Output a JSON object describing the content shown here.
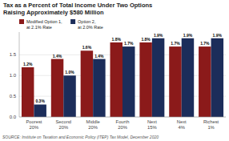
{
  "chart_data": {
    "type": "bar",
    "title": "Tax as a Percent of Total Income Under Two Options\nRaising Approximately $580 Million",
    "categories": [
      "Poorest\n20%",
      "Second\n20%",
      "Middle\n20%",
      "Fourth\n20%",
      "Next\n15%",
      "Next\n4%",
      "Richest\n1%"
    ],
    "series": [
      {
        "name": "Modified Option 1,\nat 2.1% Rate",
        "color": "#8B1A1A",
        "values": [
          1.2,
          1.4,
          1.6,
          1.8,
          1.8,
          1.7,
          1.7
        ],
        "value_labels": [
          "1.2%",
          "1.4%",
          "1.6%",
          "1.8%",
          "1.8%",
          "1.7%",
          "1.7%"
        ]
      },
      {
        "name": "Option 2,\nat 2.0% Rate",
        "color": "#1C2D5A",
        "values": [
          0.3,
          1.0,
          1.4,
          1.7,
          1.9,
          1.9,
          1.9
        ],
        "value_labels": [
          "0.3%",
          "1.0%",
          "1.4%",
          "1.7%",
          "1.9%",
          "1.9%",
          "1.9%"
        ]
      }
    ],
    "ylim": [
      0,
      2.05
    ],
    "yticks": [
      {
        "value": 0.0,
        "label": "0.0"
      },
      0.5,
      {
        "value": 1.0,
        "label": "1.0"
      },
      1.5
    ],
    "grid": true,
    "legend": "upper left",
    "data_labels": true,
    "source": "SOURCE: Institute on Taxation and Economic Policy (ITEP) Tax Model, December 2020"
  }
}
